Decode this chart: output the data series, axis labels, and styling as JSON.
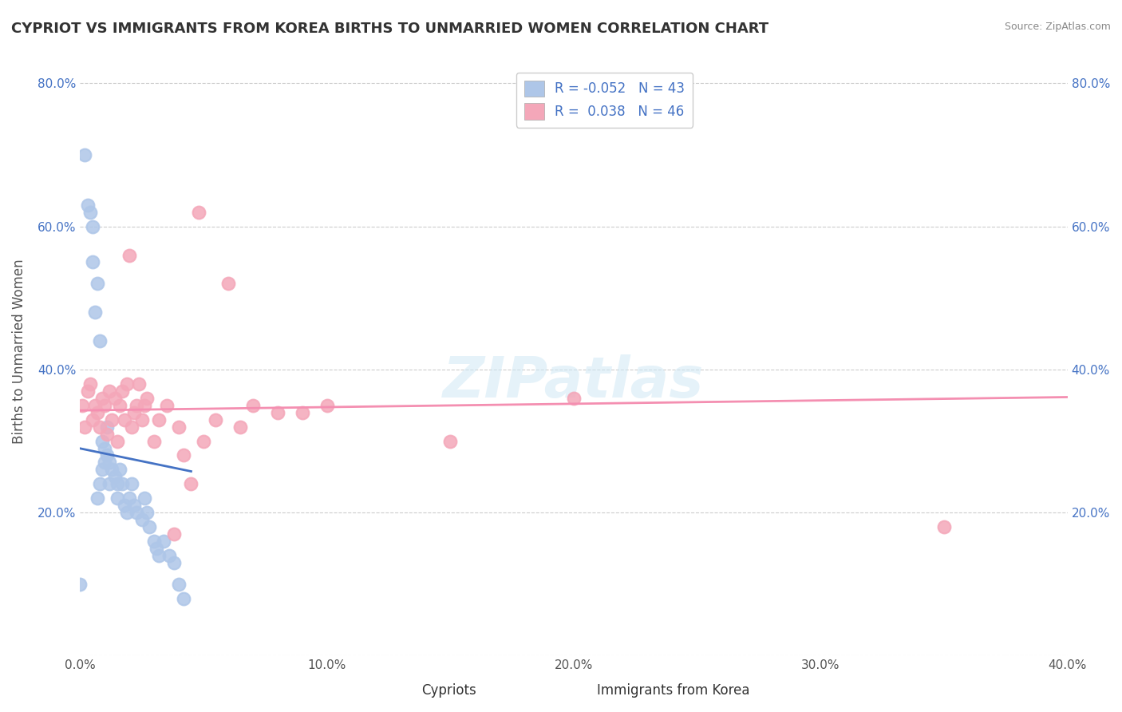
{
  "title": "CYPRIOT VS IMMIGRANTS FROM KOREA BIRTHS TO UNMARRIED WOMEN CORRELATION CHART",
  "source": "Source: ZipAtlas.com",
  "ylabel": "Births to Unmarried Women",
  "xlabel_cypriot": "Cypriots",
  "xlabel_korea": "Immigrants from Korea",
  "cypriot_R": "-0.052",
  "cypriot_N": "43",
  "korea_R": "0.038",
  "korea_N": "46",
  "xlim": [
    0.0,
    0.4
  ],
  "ylim": [
    0.0,
    0.85
  ],
  "xtick_labels": [
    "0.0%",
    "10.0%",
    "20.0%",
    "30.0%",
    "40.0%"
  ],
  "cypriot_color": "#aec6e8",
  "korea_color": "#f4a7b9",
  "trendline_cypriot_color": "#4472c4",
  "trendline_korea_color": "#f48fb1",
  "background_color": "#ffffff",
  "cypriot_x": [
    0.0,
    0.002,
    0.003,
    0.004,
    0.005,
    0.005,
    0.006,
    0.007,
    0.007,
    0.008,
    0.008,
    0.009,
    0.009,
    0.01,
    0.01,
    0.011,
    0.011,
    0.012,
    0.012,
    0.013,
    0.014,
    0.015,
    0.015,
    0.016,
    0.017,
    0.018,
    0.019,
    0.02,
    0.021,
    0.022,
    0.023,
    0.025,
    0.026,
    0.027,
    0.028,
    0.03,
    0.031,
    0.032,
    0.034,
    0.036,
    0.038,
    0.04,
    0.042
  ],
  "cypriot_y": [
    0.1,
    0.7,
    0.63,
    0.62,
    0.55,
    0.6,
    0.48,
    0.52,
    0.22,
    0.24,
    0.44,
    0.26,
    0.3,
    0.27,
    0.29,
    0.28,
    0.32,
    0.27,
    0.24,
    0.26,
    0.25,
    0.22,
    0.24,
    0.26,
    0.24,
    0.21,
    0.2,
    0.22,
    0.24,
    0.21,
    0.2,
    0.19,
    0.22,
    0.2,
    0.18,
    0.16,
    0.15,
    0.14,
    0.16,
    0.14,
    0.13,
    0.1,
    0.08
  ],
  "korea_x": [
    0.001,
    0.002,
    0.003,
    0.004,
    0.005,
    0.006,
    0.007,
    0.008,
    0.009,
    0.01,
    0.011,
    0.012,
    0.013,
    0.014,
    0.015,
    0.016,
    0.017,
    0.018,
    0.019,
    0.02,
    0.021,
    0.022,
    0.023,
    0.024,
    0.025,
    0.026,
    0.027,
    0.03,
    0.032,
    0.035,
    0.038,
    0.04,
    0.042,
    0.045,
    0.048,
    0.05,
    0.055,
    0.06,
    0.065,
    0.07,
    0.08,
    0.09,
    0.1,
    0.15,
    0.2,
    0.35
  ],
  "korea_y": [
    0.35,
    0.32,
    0.37,
    0.38,
    0.33,
    0.35,
    0.34,
    0.32,
    0.36,
    0.35,
    0.31,
    0.37,
    0.33,
    0.36,
    0.3,
    0.35,
    0.37,
    0.33,
    0.38,
    0.56,
    0.32,
    0.34,
    0.35,
    0.38,
    0.33,
    0.35,
    0.36,
    0.3,
    0.33,
    0.35,
    0.17,
    0.32,
    0.28,
    0.24,
    0.62,
    0.3,
    0.33,
    0.52,
    0.32,
    0.35,
    0.34,
    0.34,
    0.35,
    0.3,
    0.36,
    0.18
  ]
}
